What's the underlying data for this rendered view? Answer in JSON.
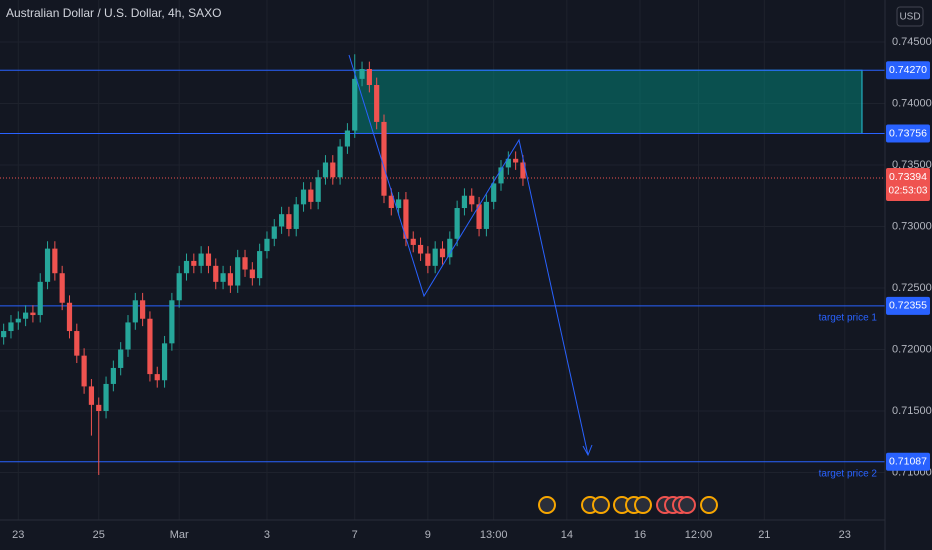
{
  "chart_data": {
    "type": "candlestick",
    "title": "Australian Dollar / U.S. Dollar, 4h, SAXO",
    "currency": "USD",
    "up_color": "#26a69a",
    "down_color": "#ef5350",
    "grid": true,
    "categories": [
      null,
      null,
      "23",
      null,
      null,
      null,
      null,
      null,
      null,
      null,
      null,
      null,
      null,
      "25",
      null,
      null,
      null,
      null,
      null,
      null,
      null,
      null,
      null,
      null,
      "Mar",
      null,
      null,
      null,
      null,
      null,
      null,
      null,
      null,
      null,
      null,
      null,
      "3",
      null,
      null,
      null,
      null,
      null,
      null,
      null,
      null,
      null,
      null,
      null,
      "7",
      null,
      null,
      null,
      null,
      null,
      null,
      null,
      null,
      null,
      "9",
      null,
      null,
      null,
      null,
      null,
      null,
      null,
      null,
      "13:00",
      null,
      null,
      null,
      null,
      null,
      null,
      null,
      null,
      null,
      "14",
      null,
      null,
      null,
      null,
      null,
      null,
      null,
      null,
      null,
      "16",
      null,
      null,
      null,
      null,
      null,
      null,
      null,
      "12:00",
      null,
      null,
      null,
      null,
      null,
      null,
      null,
      null,
      "21",
      null,
      null,
      null,
      null,
      null,
      null,
      null,
      null,
      null,
      null,
      "23",
      null,
      null,
      null,
      null,
      null
    ],
    "open": [
      0.721,
      0.7215,
      0.7222,
      0.7225,
      0.723,
      0.7228,
      0.7255,
      0.7282,
      0.7262,
      0.7238,
      0.7215,
      0.7195,
      0.717,
      0.7155,
      0.715,
      0.7172,
      0.7185,
      0.72,
      0.7222,
      0.724,
      0.7225,
      0.718,
      0.7175,
      0.7205,
      0.724,
      0.7262,
      0.7272,
      0.7268,
      0.7278,
      0.7268,
      0.7255,
      0.7262,
      0.7252,
      0.7275,
      0.7265,
      0.7258,
      0.728,
      0.729,
      0.73,
      0.731,
      0.7298,
      0.7318,
      0.733,
      0.732,
      0.734,
      0.7352,
      0.734,
      0.7365,
      0.7378,
      0.742,
      0.7428,
      0.7415,
      0.7385,
      0.7325,
      0.7315,
      0.7322,
      0.729,
      0.7285,
      0.7278,
      0.7268,
      0.7282,
      0.7275,
      0.729,
      0.7315,
      0.7325,
      0.7318,
      0.7298,
      0.732,
      0.7335,
      0.7348,
      0.7355,
      0.7352,
      null,
      null,
      null,
      null,
      null,
      null,
      null,
      null,
      null,
      null,
      null,
      null,
      null,
      null,
      null,
      null,
      null,
      null,
      null,
      null,
      null,
      null,
      null,
      null,
      null,
      null,
      null,
      null,
      null,
      null,
      null,
      null,
      null,
      null,
      null,
      null,
      null,
      null,
      null,
      null,
      null,
      null,
      null,
      null,
      null,
      null,
      null,
      null,
      null
    ],
    "high": [
      0.7221,
      0.7228,
      0.7231,
      0.7236,
      0.7236,
      0.7262,
      0.7288,
      0.7288,
      0.7268,
      0.7244,
      0.7221,
      0.7201,
      0.7176,
      0.7161,
      0.7178,
      0.7191,
      0.7206,
      0.7228,
      0.7246,
      0.7246,
      0.7231,
      0.7186,
      0.7211,
      0.7246,
      0.7268,
      0.7278,
      0.7278,
      0.7284,
      0.7284,
      0.7274,
      0.7268,
      0.7268,
      0.7281,
      0.7281,
      0.7271,
      0.7286,
      0.7296,
      0.7306,
      0.7316,
      0.7316,
      0.7324,
      0.7336,
      0.7336,
      0.7346,
      0.7358,
      0.7358,
      0.7371,
      0.7384,
      0.744,
      0.7434,
      0.7434,
      0.7421,
      0.7391,
      0.7331,
      0.7328,
      0.7328,
      0.7296,
      0.7291,
      0.7284,
      0.7288,
      0.7288,
      0.7296,
      0.7321,
      0.7331,
      0.7331,
      0.7324,
      0.7326,
      0.7341,
      0.7354,
      0.7361,
      0.7361,
      0.7358,
      null,
      null,
      null,
      null,
      null,
      null,
      null,
      null,
      null,
      null,
      null,
      null,
      null,
      null,
      null,
      null,
      null,
      null,
      null,
      null,
      null,
      null,
      null,
      null,
      null,
      null,
      null,
      null,
      null,
      null,
      null,
      null,
      null,
      null,
      null,
      null,
      null,
      null,
      null,
      null,
      null,
      null,
      null,
      null,
      null,
      null,
      null,
      null,
      null
    ],
    "low": [
      0.7204,
      0.7209,
      0.7216,
      0.7219,
      0.7222,
      0.7222,
      0.7249,
      0.7256,
      0.7232,
      0.7209,
      0.7189,
      0.7164,
      0.713,
      0.7098,
      0.7144,
      0.7166,
      0.7179,
      0.7194,
      0.7216,
      0.7219,
      0.7174,
      0.7169,
      0.7169,
      0.7199,
      0.7234,
      0.7256,
      0.7262,
      0.7262,
      0.7262,
      0.7249,
      0.7249,
      0.7246,
      0.7246,
      0.7259,
      0.7252,
      0.7252,
      0.7274,
      0.7284,
      0.7294,
      0.7292,
      0.7292,
      0.7312,
      0.7314,
      0.7314,
      0.7334,
      0.7334,
      0.7334,
      0.7359,
      0.7372,
      0.7414,
      0.7409,
      0.7379,
      0.7319,
      0.7309,
      0.7309,
      0.7284,
      0.7279,
      0.7272,
      0.7262,
      0.7262,
      0.7269,
      0.7269,
      0.7284,
      0.7309,
      0.7312,
      0.7292,
      0.7292,
      0.7314,
      0.7329,
      0.7342,
      0.7346,
      0.7333,
      null,
      null,
      null,
      null,
      null,
      null,
      null,
      null,
      null,
      null,
      null,
      null,
      null,
      null,
      null,
      null,
      null,
      null,
      null,
      null,
      null,
      null,
      null,
      null,
      null,
      null,
      null,
      null,
      null,
      null,
      null,
      null,
      null,
      null,
      null,
      null,
      null,
      null,
      null,
      null,
      null,
      null,
      null,
      null,
      null,
      null,
      null,
      null,
      null
    ],
    "close": [
      0.7215,
      0.7222,
      0.7225,
      0.723,
      0.7228,
      0.7255,
      0.7282,
      0.7262,
      0.7238,
      0.7215,
      0.7195,
      0.717,
      0.7155,
      0.715,
      0.7172,
      0.7185,
      0.72,
      0.7222,
      0.724,
      0.7225,
      0.718,
      0.7175,
      0.7205,
      0.724,
      0.7262,
      0.7272,
      0.7268,
      0.7278,
      0.7268,
      0.7255,
      0.7262,
      0.7252,
      0.7275,
      0.7265,
      0.7258,
      0.728,
      0.729,
      0.73,
      0.731,
      0.7298,
      0.7318,
      0.733,
      0.732,
      0.734,
      0.7352,
      0.734,
      0.7365,
      0.7378,
      0.742,
      0.7428,
      0.7415,
      0.7385,
      0.7325,
      0.7315,
      0.7322,
      0.729,
      0.7285,
      0.7278,
      0.7268,
      0.7282,
      0.7275,
      0.729,
      0.7315,
      0.7325,
      0.7318,
      0.7298,
      0.732,
      0.7335,
      0.7348,
      0.7355,
      0.7352,
      0.7339,
      null,
      null,
      null,
      null,
      null,
      null,
      null,
      null,
      null,
      null,
      null,
      null,
      null,
      null,
      null,
      null,
      null,
      null,
      null,
      null,
      null,
      null,
      null,
      null,
      null,
      null,
      null,
      null,
      null,
      null,
      null,
      null,
      null,
      null,
      null,
      null,
      null,
      null,
      null,
      null,
      null,
      null,
      null,
      null,
      null,
      null,
      null,
      null,
      null
    ],
    "ylim": [
      0.70614,
      0.74841
    ],
    "yticks": [
      {
        "value": 0.745,
        "label": "0.74500"
      },
      {
        "value": 0.74,
        "label": "0.74000"
      },
      {
        "value": 0.735,
        "label": "0.73500"
      },
      {
        "value": 0.73,
        "label": "0.73000"
      },
      {
        "value": 0.725,
        "label": "0.72500"
      },
      {
        "value": 0.72,
        "label": "0.72000"
      },
      {
        "value": 0.715,
        "label": "0.71500"
      },
      {
        "value": 0.71,
        "label": "0.71000"
      }
    ],
    "levels": [
      {
        "value": 0.7427,
        "label": "0.74270"
      },
      {
        "value": 0.73756,
        "label": "0.73756"
      },
      {
        "value": 0.72355,
        "label": "0.72355",
        "text": "target price 1"
      },
      {
        "value": 0.71087,
        "label": "0.71087",
        "text": "target price 2"
      }
    ],
    "last_price": {
      "value": 0.73394,
      "label": "0.73394",
      "countdown": "02:53:03"
    }
  }
}
